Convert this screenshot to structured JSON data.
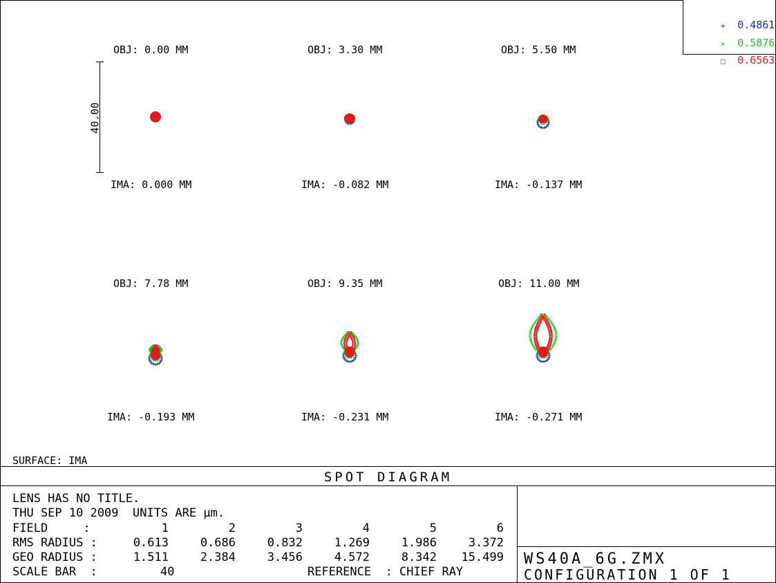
{
  "legend": [
    {
      "wavelength": "0.4861",
      "symbol": "+",
      "color": "#1f2bb0"
    },
    {
      "wavelength": "0.5876",
      "symbol": "×",
      "color": "#22c422"
    },
    {
      "wavelength": "0.6563",
      "symbol": "□",
      "color": "#e01b1b"
    }
  ],
  "scale_bar_label": "40.00",
  "fields": [
    {
      "obj": "OBJ: 0.00 MM",
      "ima": "IMA: 0.000 MM"
    },
    {
      "obj": "OBJ: 3.30 MM",
      "ima": "IMA: -0.082 MM"
    },
    {
      "obj": "OBJ: 5.50 MM",
      "ima": "IMA: -0.137 MM"
    },
    {
      "obj": "OBJ: 7.78 MM",
      "ima": "IMA: -0.193 MM"
    },
    {
      "obj": "OBJ: 9.35 MM",
      "ima": "IMA: -0.231 MM"
    },
    {
      "obj": "OBJ: 11.00 MM",
      "ima": "IMA: -0.271 MM"
    }
  ],
  "surface": "SURFACE: IMA",
  "title": "SPOT DIAGRAM",
  "info": {
    "line1": "LENS HAS NO TITLE.",
    "line2": "THU SEP 10 2009  UNITS ARE µm.",
    "field_label": "FIELD     :",
    "field_values": [
      "1",
      "2",
      "3",
      "4",
      "5",
      "6"
    ],
    "rms_label": "RMS RADIUS :",
    "rms_values": [
      "0.613",
      "0.686",
      "0.832",
      "1.269",
      "1.986",
      "3.372"
    ],
    "geo_label": "GEO RADIUS :",
    "geo_values": [
      "1.511",
      "2.384",
      "3.456",
      "4.572",
      "8.342",
      "15.499"
    ],
    "scale_label": "SCALE BAR  :",
    "scale_value": "40",
    "reference": "REFERENCE  : CHIEF RAY"
  },
  "file_name": "WS40A_6G.ZMX",
  "configuration": "CONFIGURATION 1 OF 1",
  "chart_data": {
    "type": "scatter",
    "title": "SPOT DIAGRAM",
    "units": "µm",
    "scale_bar": 40,
    "wavelengths": [
      "0.4861",
      "0.5876",
      "0.6563"
    ],
    "fields": [
      1,
      2,
      3,
      4,
      5,
      6
    ],
    "object_heights_mm": [
      0.0,
      3.3,
      5.5,
      7.78,
      9.35,
      11.0
    ],
    "image_heights_mm": [
      0.0,
      -0.082,
      -0.137,
      -0.193,
      -0.231,
      -0.271
    ],
    "rms_radius": [
      0.613,
      0.686,
      0.832,
      1.269,
      1.986,
      3.372
    ],
    "geo_radius": [
      1.511,
      2.384,
      3.456,
      4.572,
      8.342,
      15.499
    ],
    "reference": "CHIEF RAY",
    "surface": "IMA"
  }
}
